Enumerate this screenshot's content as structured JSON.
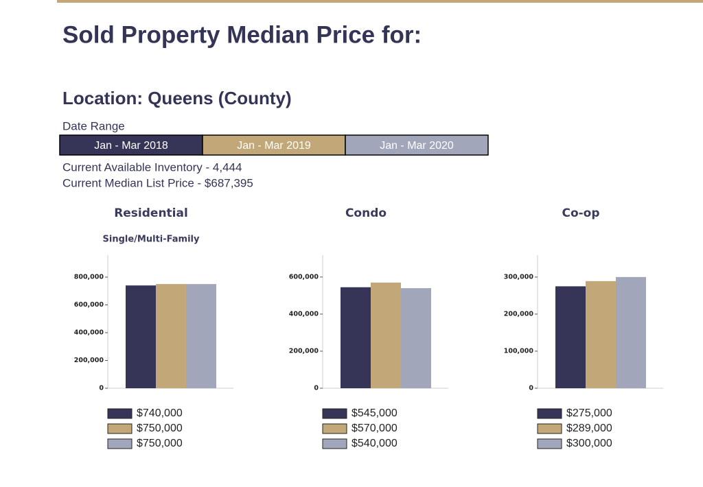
{
  "header": {
    "title": "Sold Property Median Price for:",
    "location": "Location: Queens (County)",
    "date_range_label": "Date Range",
    "periods": [
      "Jan - Mar 2018",
      "Jan - Mar 2019",
      "Jan - Mar 2020"
    ],
    "inventory": "Current Available Inventory - 4,444",
    "median_list_price": "Current Median List Price - $687,395"
  },
  "chart_data": [
    {
      "type": "bar",
      "title": "Residential",
      "subtitle": "Single/Multi-Family",
      "values": [
        740000,
        750000,
        750000
      ],
      "value_labels": [
        "$740,000",
        "$750,000",
        "$750,000"
      ],
      "colors": [
        "#373557",
        "#c2a878",
        "#a2a6ba"
      ],
      "ylim": [
        0,
        958000
      ],
      "yticks": [
        0,
        {
          "value": 200000,
          "label": "200,000"
        },
        {
          "value": 400000,
          "label": "400,000"
        },
        {
          "value": 600000,
          "label": "600,000"
        },
        {
          "value": 800000,
          "label": "800,000"
        }
      ]
    },
    {
      "type": "bar",
      "title": "Condo",
      "values": [
        545000,
        570000,
        540000
      ],
      "value_labels": [
        "$545,000",
        "$570,000",
        "$540,000"
      ],
      "colors": [
        "#373557",
        "#c2a878",
        "#a2a6ba"
      ],
      "ylim": [
        0,
        718000
      ],
      "yticks": [
        0,
        {
          "value": 200000,
          "label": "200,000"
        },
        {
          "value": 400000,
          "label": "400,000"
        },
        {
          "value": 600000,
          "label": "600,000"
        }
      ]
    },
    {
      "type": "bar",
      "title": "Co-op",
      "values": [
        275000,
        289000,
        300000
      ],
      "value_labels": [
        "$275,000",
        "$289,000",
        "$300,000"
      ],
      "colors": [
        "#373557",
        "#c2a878",
        "#a2a6ba"
      ],
      "ylim": [
        0,
        359000
      ],
      "yticks": [
        0,
        {
          "value": 100000,
          "label": "100,000"
        },
        {
          "value": 200000,
          "label": "200,000"
        },
        {
          "value": 300000,
          "label": "300,000"
        }
      ]
    }
  ]
}
